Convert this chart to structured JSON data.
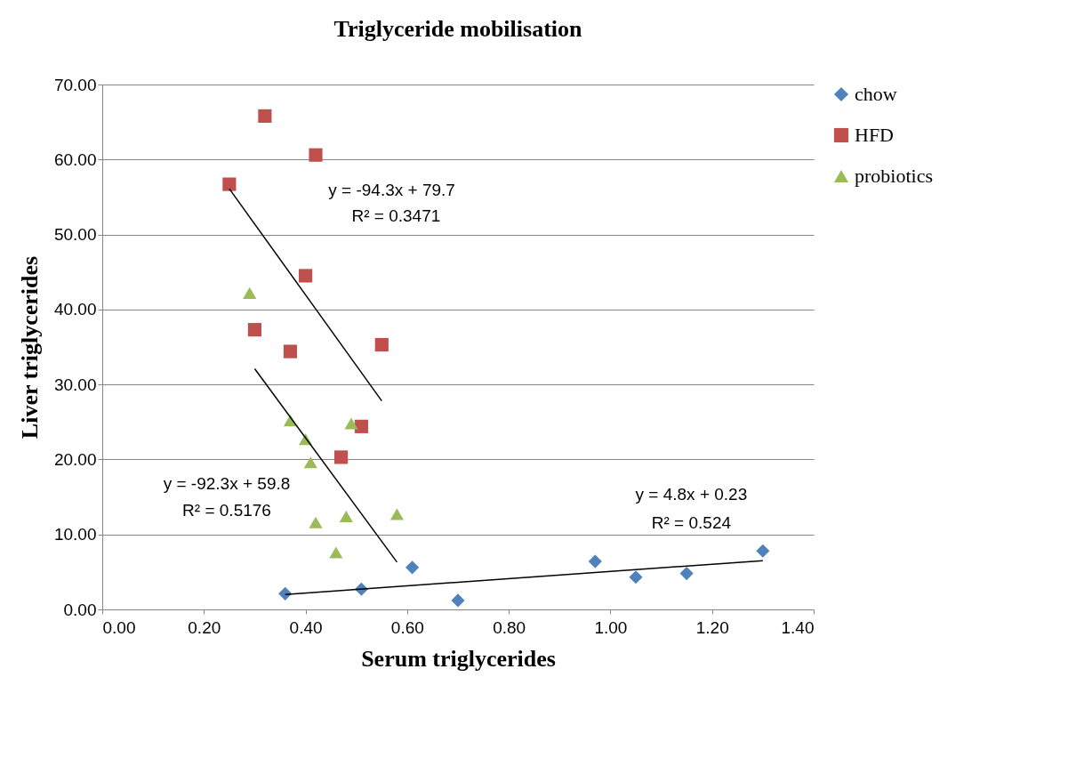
{
  "chart_data": {
    "type": "scatter",
    "title": "Triglyceride mobilisation",
    "xlabel": "Serum triglycerides",
    "ylabel": "Liver triglycerides",
    "xlim": [
      0,
      1.4
    ],
    "ylim": [
      0,
      70
    ],
    "xticks": [
      {
        "value": 0,
        "label": "0.00"
      },
      {
        "value": 0.2,
        "label": "0.20"
      },
      {
        "value": 0.4,
        "label": "0.40"
      },
      {
        "value": 0.6,
        "label": "0.60"
      },
      {
        "value": 0.8,
        "label": "0.80"
      },
      {
        "value": 1.0,
        "label": "1.00"
      },
      {
        "value": 1.2,
        "label": "1.20"
      },
      {
        "value": 1.4,
        "label": "1.40"
      }
    ],
    "yticks": [
      {
        "value": 0,
        "label": "0.00"
      },
      {
        "value": 10,
        "label": "10.00"
      },
      {
        "value": 20,
        "label": "20.00"
      },
      {
        "value": 30,
        "label": "30.00"
      },
      {
        "value": 40,
        "label": "40.00"
      },
      {
        "value": 50,
        "label": "50.00"
      },
      {
        "value": 60,
        "label": "60.00"
      },
      {
        "value": 70,
        "label": "70.00"
      }
    ],
    "grid": "y",
    "legend": "right",
    "series": [
      {
        "name": "chow",
        "color": "#4f81bd",
        "marker": "diamond",
        "x": [
          0.36,
          0.51,
          0.61,
          0.7,
          0.97,
          1.05,
          1.15,
          1.3
        ],
        "values": [
          2.1,
          2.7,
          5.6,
          1.2,
          6.4,
          4.3,
          4.8,
          7.8
        ]
      },
      {
        "name": "HFD",
        "color": "#c0504d",
        "marker": "square",
        "x": [
          0.25,
          0.32,
          0.42,
          0.4,
          0.3,
          0.37,
          0.55,
          0.51,
          0.47
        ],
        "values": [
          56.7,
          65.8,
          60.6,
          44.5,
          37.3,
          34.4,
          35.3,
          24.4,
          20.3
        ]
      },
      {
        "name": "probiotics",
        "color": "#9bbb59",
        "marker": "triangle",
        "x": [
          0.29,
          0.37,
          0.4,
          0.41,
          0.49,
          0.42,
          0.48,
          0.58,
          0.46
        ],
        "values": [
          42.2,
          25.2,
          22.7,
          19.6,
          24.8,
          11.6,
          12.4,
          12.7,
          7.6
        ]
      },
      {
        "type": "line",
        "color": "#000000",
        "x": [
          0.25,
          0.55
        ],
        "values": [
          56.1,
          27.8
        ]
      },
      {
        "type": "line",
        "color": "#000000",
        "x": [
          0.3,
          0.58
        ],
        "values": [
          32.1,
          6.3
        ]
      },
      {
        "type": "line",
        "color": "#000000",
        "x": [
          0.36,
          1.3
        ],
        "values": [
          2.0,
          6.5
        ]
      }
    ],
    "annotations": [
      "y = -94.3x + 79.7",
      "R² = 0.3471",
      "y = -92.3x + 59.8",
      "R² = 0.5176",
      "y = 4.8x + 0.23",
      "R² = 0.524"
    ]
  }
}
